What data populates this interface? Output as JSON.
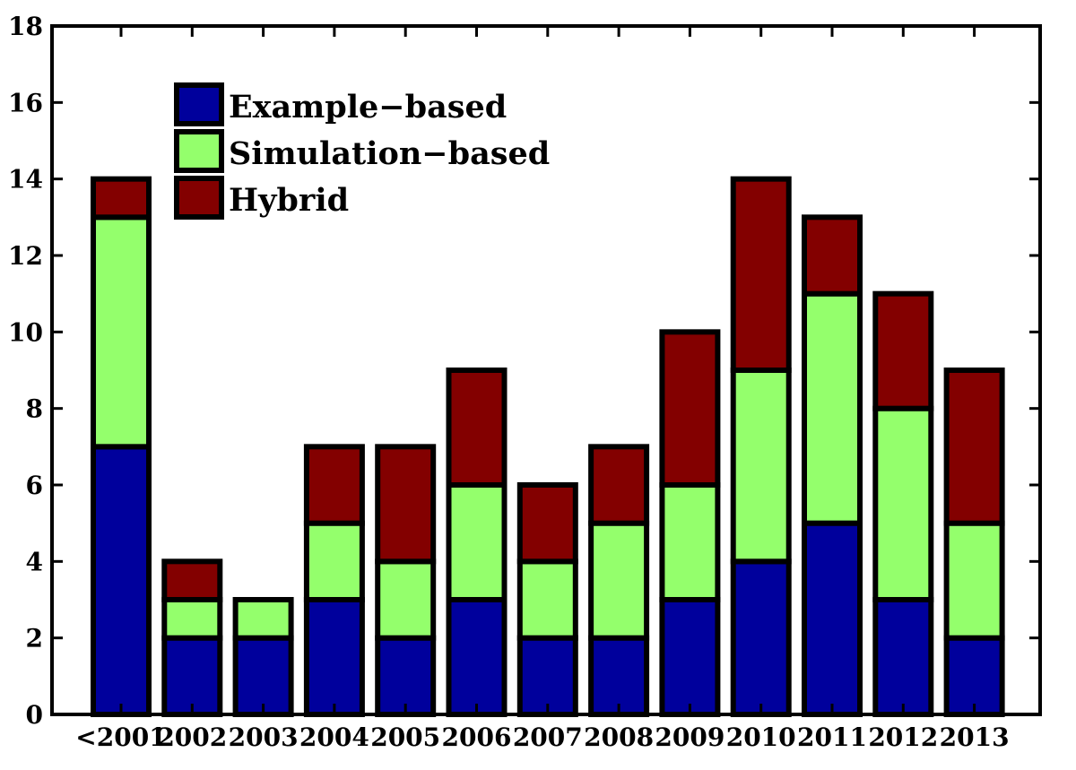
{
  "chart_data": {
    "type": "bar",
    "stacked": true,
    "categories": [
      "<2001",
      "2002",
      "2003",
      "2004",
      "2005",
      "2006",
      "2007",
      "2008",
      "2009",
      "2010",
      "2011",
      "2012",
      "2013"
    ],
    "series": [
      {
        "name": "Example−based",
        "color": "#00009c",
        "values": [
          7,
          2,
          2,
          3,
          2,
          3,
          2,
          2,
          3,
          4,
          5,
          3,
          2
        ]
      },
      {
        "name": "Simulation−based",
        "color": "#94ff6c",
        "values": [
          6,
          1,
          1,
          2,
          2,
          3,
          2,
          3,
          3,
          5,
          6,
          5,
          3
        ]
      },
      {
        "name": "Hybrid",
        "color": "#830000",
        "values": [
          1,
          1,
          0,
          2,
          3,
          3,
          2,
          2,
          4,
          5,
          2,
          3,
          4
        ]
      }
    ],
    "y_ticks": [
      0,
      2,
      4,
      6,
      8,
      10,
      12,
      14,
      16,
      18
    ],
    "ylim": [
      0,
      18
    ],
    "legend_position": "top-left",
    "grid": false
  }
}
